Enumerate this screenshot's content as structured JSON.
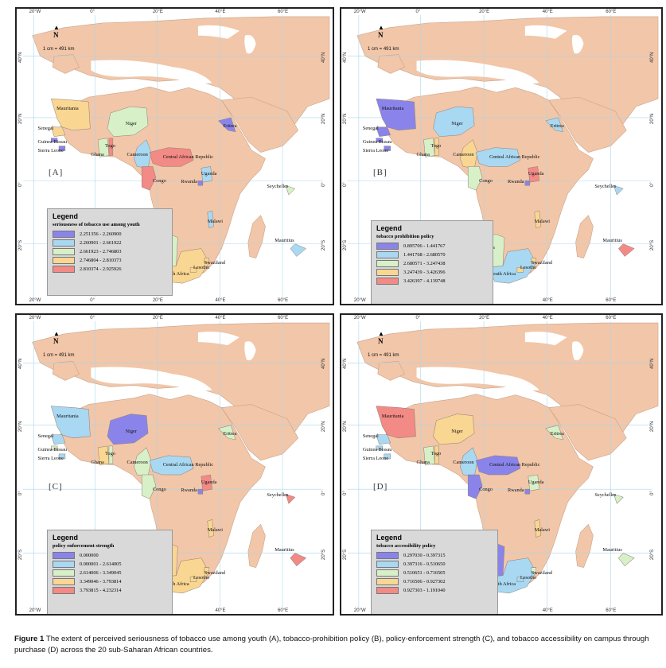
{
  "panels": [
    {
      "label": "[A]",
      "legend": {
        "title": "Legend",
        "subtitle": "seriousness of tobacco use among youth",
        "classes": [
          "2.251356 - 2.260900",
          "2.260901 - 2.661922",
          "2.661923 - 2.746803",
          "2.746804 - 2.810373",
          "2.810374 - 2.925926"
        ]
      },
      "countries": {
        "Mauritania": 3,
        "Senegal": 3,
        "Guinea Bissau": 0,
        "Sierra Leone": 0,
        "Niger": 2,
        "Ghana": 2,
        "Togo": 4,
        "Cameroon": 1,
        "Central African Republic": 4,
        "Congo": 4,
        "Eritrea": 0,
        "Uganda": 1,
        "Rwanda": 0,
        "Malawi": 1,
        "Namibia": 2,
        "South Africa": 3,
        "Lesotho": 3,
        "Swaziland": 3,
        "Seychelles": 2,
        "Mauritius": 1
      }
    },
    {
      "label": "[B]",
      "legend": {
        "title": "Legend",
        "subtitle": "tobacco prohibition policy",
        "classes": [
          "0.895706 - 1.441767",
          "1.441768 - 2.680570",
          "2.680571 - 3.247438",
          "3.247439 - 3.426396",
          "3.426397 - 4.139748"
        ]
      },
      "countries": {
        "Mauritania": 0,
        "Senegal": 0,
        "Guinea Bissau": 0,
        "Sierra Leone": 0,
        "Niger": 1,
        "Ghana": 2,
        "Togo": 3,
        "Cameroon": 3,
        "Central African Republic": 1,
        "Congo": 2,
        "Eritrea": 1,
        "Uganda": 4,
        "Rwanda": 0,
        "Malawi": 3,
        "Namibia": 2,
        "South Africa": 1,
        "Lesotho": 3,
        "Swaziland": 3,
        "Seychelles": 1,
        "Mauritius": 4
      }
    },
    {
      "label": "[C]",
      "legend": {
        "title": "Legend",
        "subtitle": "policy enforcement strength",
        "classes": [
          "0.000000",
          "0.000001 - 2.614005",
          "2.614006 - 3.349045",
          "3.349046 - 3.793814",
          "3.793815 - 4.232314"
        ]
      },
      "countries": {
        "Mauritania": 1,
        "Senegal": 1,
        "Guinea Bissau": 2,
        "Sierra Leone": 1,
        "Niger": 0,
        "Ghana": 3,
        "Togo": 2,
        "Cameroon": 2,
        "Central African Republic": 1,
        "Congo": 2,
        "Eritrea": 2,
        "Uganda": 4,
        "Rwanda": 0,
        "Malawi": 3,
        "Namibia": 3,
        "South Africa": 3,
        "Lesotho": 3,
        "Swaziland": 3,
        "Seychelles": 4,
        "Mauritius": 4
      }
    },
    {
      "label": "[D]",
      "legend": {
        "title": "Legend",
        "subtitle": "tobacco accessibility policy",
        "classes": [
          "0.297030 - 0.397315",
          "0.397316 - 0.510650",
          "0.510651 - 0.716505",
          "0.716506 - 0.927302",
          "0.927303 - 1.191040"
        ]
      },
      "countries": {
        "Mauritania": 4,
        "Senegal": 1,
        "Guinea Bissau": 1,
        "Sierra Leone": 1,
        "Niger": 3,
        "Ghana": 2,
        "Togo": 3,
        "Cameroon": 1,
        "Central African Republic": 0,
        "Congo": 0,
        "Eritrea": 2,
        "Uganda": 2,
        "Rwanda": 0,
        "Malawi": 3,
        "Namibia": 0,
        "South Africa": 1,
        "Lesotho": 1,
        "Swaziland": 2,
        "Seychelles": 2,
        "Mauritius": 2
      }
    }
  ],
  "map_common": {
    "scale": "1 cm = 491 km",
    "north": "N",
    "lon_ticks": [
      "20°W",
      "0°",
      "20°E",
      "40°E",
      "60°E"
    ],
    "lat_ticks": [
      "40°N",
      "20°N",
      "0°",
      "20°S"
    ]
  },
  "colors": {
    "class": [
      "#8a84ea",
      "#a9d8f2",
      "#d7f0c8",
      "#f9d692",
      "#f28a86"
    ],
    "land": "#f2c6a8",
    "sea": "#ffffff",
    "grid": "#a9d6ec"
  },
  "caption": {
    "prefix": "Figure 1",
    "text": "The extent of perceived seriousness of tobacco use among youth (A), tobacco-prohibition policy (B), policy-enforcement strength (C), and tobacco accessibility on campus through purchase (D) across the 20 sub-Saharan African countries."
  }
}
